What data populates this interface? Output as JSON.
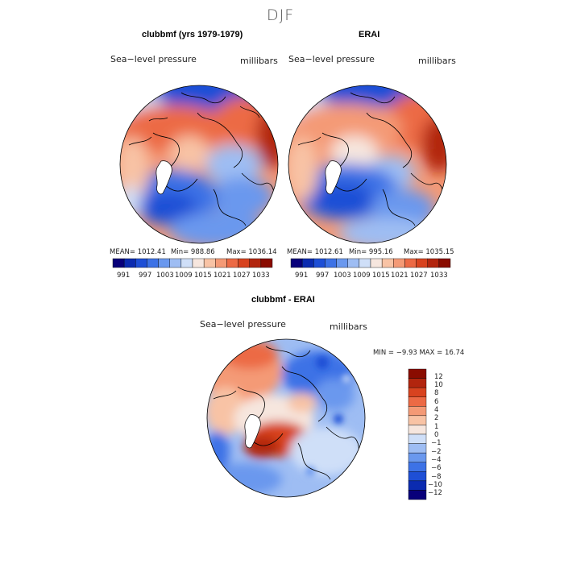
{
  "figure": {
    "title": "DJF",
    "colors": {
      "land_outline": "#000000",
      "seq_colors": [
        "#08007a",
        "#0b2bb0",
        "#1e4fd6",
        "#3d72e6",
        "#6a98ee",
        "#9ebdf3",
        "#cfdff8",
        "#f6e6de",
        "#f8c3a5",
        "#f49a76",
        "#ec6a45",
        "#d8431f",
        "#b2250e",
        "#8a0c00"
      ],
      "diff_colors": [
        "#08007a",
        "#0b2bb0",
        "#1e4fd6",
        "#3d72e6",
        "#6a98ee",
        "#9ebdf3",
        "#cfdff8",
        "#f6e6de",
        "#f8c3a5",
        "#f49a76",
        "#ec6a45",
        "#d8431f",
        "#b2250e",
        "#8a0c00"
      ]
    }
  },
  "panels": [
    {
      "id": "model",
      "title": "clubbmf (yrs 1979-1979)",
      "left_label": "Sea−level pressure",
      "right_label": "millibars",
      "stats": {
        "mean": "MEAN= 1012.41",
        "min": "Min= 988.86",
        "max": "Max= 1036.14"
      }
    },
    {
      "id": "obs",
      "title": "ERAI",
      "left_label": "Sea−level pressure",
      "right_label": "millibars",
      "stats": {
        "mean": "MEAN= 1012.61",
        "min": "Min= 995.16",
        "max": "Max= 1035.15"
      }
    },
    {
      "id": "diff",
      "title": "clubbmf - ERAI",
      "left_label": "Sea−level pressure",
      "right_label": "millibars",
      "stats_line": "MIN =  −9.93 MAX =  16.74"
    }
  ],
  "colorbar_seq": {
    "ticks": [
      "991",
      "997",
      "1003",
      "1009",
      "1015",
      "1021",
      "1027",
      "1033"
    ]
  },
  "colorbar_diff": {
    "ticks": [
      "12",
      "10",
      "8",
      "6",
      "4",
      "2",
      "1",
      "0",
      "−1",
      "−2",
      "−4",
      "−6",
      "−8",
      "−10",
      "−12"
    ]
  }
}
